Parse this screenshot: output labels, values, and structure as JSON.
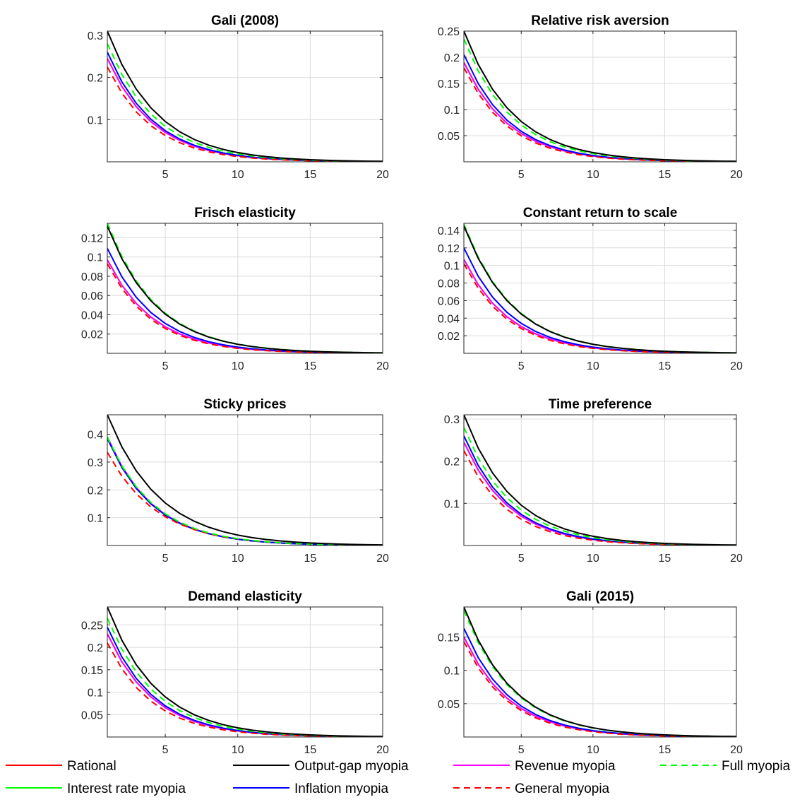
{
  "chart_data": {
    "type": "line",
    "x": [
      1,
      2,
      3,
      4,
      5,
      6,
      7,
      8,
      9,
      10,
      11,
      12,
      13,
      14,
      15,
      16,
      17,
      18,
      19,
      20
    ],
    "xlim": [
      1,
      20
    ],
    "xticks": [
      5,
      10,
      15,
      20
    ],
    "grid": true,
    "legend": {
      "placement": "bottom",
      "entries": [
        {
          "name": "Rational",
          "color": "#ff0000",
          "style": "solid"
        },
        {
          "name": "Output-gap myopia",
          "color": "#000000",
          "style": "solid"
        },
        {
          "name": "Revenue myopia",
          "color": "#ff00ff",
          "style": "solid"
        },
        {
          "name": "Full myopia",
          "color": "#00ff00",
          "style": "dashed"
        },
        {
          "name": "Interest rate myopia",
          "color": "#00ff00",
          "style": "solid"
        },
        {
          "name": "Inflation myopia",
          "color": "#0000ff",
          "style": "solid"
        },
        {
          "name": "General myopia",
          "color": "#ff0000",
          "style": "dashed"
        }
      ]
    },
    "panels": [
      {
        "title": "Gali (2008)",
        "ylim": [
          0,
          0.31
        ],
        "yticks": [
          0.1,
          0.2,
          0.3
        ],
        "series": [
          {
            "name": "Rational",
            "y0": 0.245,
            "r": 0.73
          },
          {
            "name": "Output-gap myopia",
            "y0": 0.31,
            "r": 0.745
          },
          {
            "name": "Revenue myopia",
            "y0": 0.245,
            "r": 0.73
          },
          {
            "name": "Full myopia",
            "y0": 0.28,
            "r": 0.74
          },
          {
            "name": "Interest rate myopia",
            "y0": 0.245,
            "r": 0.73
          },
          {
            "name": "Inflation myopia",
            "y0": 0.26,
            "r": 0.73
          },
          {
            "name": "General myopia",
            "y0": 0.225,
            "r": 0.725
          }
        ]
      },
      {
        "title": "Relative risk aversion",
        "ylim": [
          0,
          0.25
        ],
        "yticks": [
          0.05,
          0.1,
          0.15,
          0.2,
          0.25
        ],
        "series": [
          {
            "name": "Rational",
            "y0": 0.19,
            "r": 0.73
          },
          {
            "name": "Output-gap myopia",
            "y0": 0.25,
            "r": 0.745
          },
          {
            "name": "Revenue myopia",
            "y0": 0.19,
            "r": 0.73
          },
          {
            "name": "Full myopia",
            "y0": 0.235,
            "r": 0.74
          },
          {
            "name": "Interest rate myopia",
            "y0": 0.19,
            "r": 0.73
          },
          {
            "name": "Inflation myopia",
            "y0": 0.205,
            "r": 0.73
          },
          {
            "name": "General myopia",
            "y0": 0.18,
            "r": 0.725
          }
        ]
      },
      {
        "title": "Frisch elasticity",
        "ylim": [
          0,
          0.135
        ],
        "yticks": [
          0.02,
          0.04,
          0.06,
          0.08,
          0.1,
          0.12
        ],
        "series": [
          {
            "name": "Rational",
            "y0": 0.097,
            "r": 0.73
          },
          {
            "name": "Output-gap myopia",
            "y0": 0.132,
            "r": 0.745
          },
          {
            "name": "Revenue myopia",
            "y0": 0.097,
            "r": 0.73
          },
          {
            "name": "Full myopia",
            "y0": 0.135,
            "r": 0.745
          },
          {
            "name": "Interest rate myopia",
            "y0": 0.097,
            "r": 0.73
          },
          {
            "name": "Inflation myopia",
            "y0": 0.109,
            "r": 0.73
          },
          {
            "name": "General myopia",
            "y0": 0.093,
            "r": 0.725
          }
        ]
      },
      {
        "title": "Constant return to scale",
        "ylim": [
          0,
          0.148
        ],
        "yticks": [
          0.02,
          0.04,
          0.06,
          0.08,
          0.1,
          0.12,
          0.14
        ],
        "series": [
          {
            "name": "Rational",
            "y0": 0.107,
            "r": 0.73
          },
          {
            "name": "Output-gap myopia",
            "y0": 0.145,
            "r": 0.745
          },
          {
            "name": "Revenue myopia",
            "y0": 0.107,
            "r": 0.73
          },
          {
            "name": "Full myopia",
            "y0": 0.147,
            "r": 0.745
          },
          {
            "name": "Interest rate myopia",
            "y0": 0.107,
            "r": 0.73
          },
          {
            "name": "Inflation myopia",
            "y0": 0.12,
            "r": 0.73
          },
          {
            "name": "General myopia",
            "y0": 0.102,
            "r": 0.725
          }
        ]
      },
      {
        "title": "Sticky prices",
        "ylim": [
          0,
          0.47
        ],
        "yticks": [
          0.1,
          0.2,
          0.3,
          0.4
        ],
        "series": [
          {
            "name": "Rational",
            "y0": 0.385,
            "r": 0.73
          },
          {
            "name": "Output-gap myopia",
            "y0": 0.47,
            "r": 0.755
          },
          {
            "name": "Revenue myopia",
            "y0": 0.39,
            "r": 0.73
          },
          {
            "name": "Full myopia",
            "y0": 0.39,
            "r": 0.735
          },
          {
            "name": "Interest rate myopia",
            "y0": 0.385,
            "r": 0.73
          },
          {
            "name": "Inflation myopia",
            "y0": 0.385,
            "r": 0.73
          },
          {
            "name": "General myopia",
            "y0": 0.335,
            "r": 0.745
          }
        ]
      },
      {
        "title": "Time preference",
        "ylim": [
          0,
          0.31
        ],
        "yticks": [
          0.1,
          0.2,
          0.3
        ],
        "series": [
          {
            "name": "Rational",
            "y0": 0.245,
            "r": 0.73
          },
          {
            "name": "Output-gap myopia",
            "y0": 0.31,
            "r": 0.745
          },
          {
            "name": "Revenue myopia",
            "y0": 0.245,
            "r": 0.73
          },
          {
            "name": "Full myopia",
            "y0": 0.28,
            "r": 0.74
          },
          {
            "name": "Interest rate myopia",
            "y0": 0.245,
            "r": 0.73
          },
          {
            "name": "Inflation myopia",
            "y0": 0.26,
            "r": 0.73
          },
          {
            "name": "General myopia",
            "y0": 0.225,
            "r": 0.725
          }
        ]
      },
      {
        "title": "Demand elasticity",
        "ylim": [
          0,
          0.29
        ],
        "yticks": [
          0.05,
          0.1,
          0.15,
          0.2,
          0.25
        ],
        "series": [
          {
            "name": "Rational",
            "y0": 0.23,
            "r": 0.73
          },
          {
            "name": "Output-gap myopia",
            "y0": 0.29,
            "r": 0.745
          },
          {
            "name": "Revenue myopia",
            "y0": 0.23,
            "r": 0.73
          },
          {
            "name": "Full myopia",
            "y0": 0.265,
            "r": 0.74
          },
          {
            "name": "Interest rate myopia",
            "y0": 0.23,
            "r": 0.73
          },
          {
            "name": "Inflation myopia",
            "y0": 0.245,
            "r": 0.73
          },
          {
            "name": "General myopia",
            "y0": 0.21,
            "r": 0.725
          }
        ]
      },
      {
        "title": "Gali (2015)",
        "ylim": [
          0,
          0.195
        ],
        "yticks": [
          0.05,
          0.1,
          0.15
        ],
        "series": [
          {
            "name": "Rational",
            "y0": 0.15,
            "r": 0.73
          },
          {
            "name": "Output-gap myopia",
            "y0": 0.195,
            "r": 0.745
          },
          {
            "name": "Revenue myopia",
            "y0": 0.15,
            "r": 0.73
          },
          {
            "name": "Full myopia",
            "y0": 0.19,
            "r": 0.745
          },
          {
            "name": "Interest rate myopia",
            "y0": 0.15,
            "r": 0.73
          },
          {
            "name": "Inflation myopia",
            "y0": 0.163,
            "r": 0.73
          },
          {
            "name": "General myopia",
            "y0": 0.143,
            "r": 0.725
          }
        ]
      }
    ]
  }
}
